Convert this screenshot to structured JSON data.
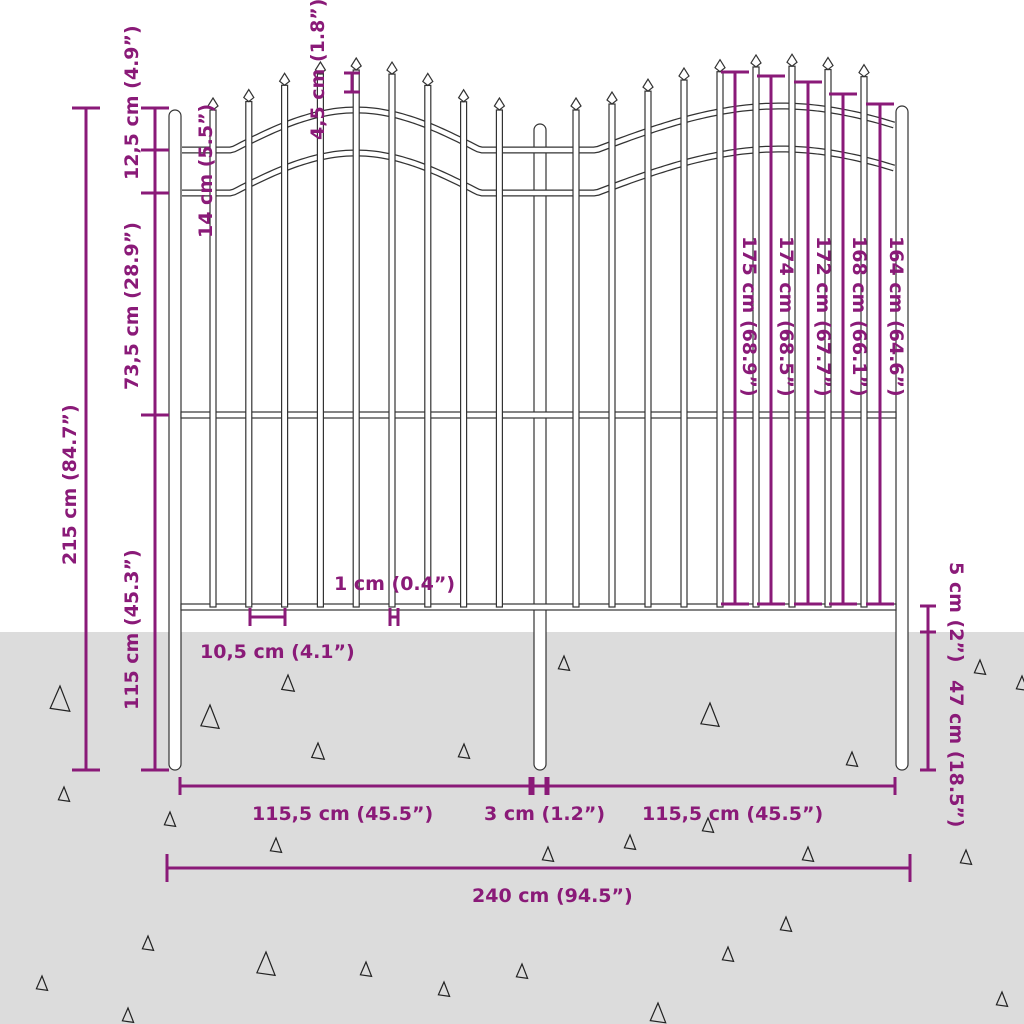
{
  "colors": {
    "accent": "#8a1a78",
    "ground": "#dcdcdc",
    "fence_stroke": "#333333"
  },
  "labels": {
    "top_rail_gap": "12,5 cm (4.9”)",
    "finial_offset": "4,5 cm (1.8”)",
    "rail_gap": "14 cm (5.5”)",
    "upper_section": "73,5 cm (28.9”)",
    "total_height": "215 cm (84.7”)",
    "lower_section": "115 cm (45.3”)",
    "picket_width": "1 cm (0.4”)",
    "picket_spacing": "10,5 cm (4.1”)",
    "h175": "175 cm (68.9”)",
    "h174": "174 cm (68.5”)",
    "h172": "172 cm (67.7”)",
    "h168": "168 cm (66.1”)",
    "h164": "164 cm (64.6”)",
    "ground_gap": "5 cm (2”)",
    "post_depth": "47 cm (18.5”)",
    "panel_left": "115,5 cm (45.5”)",
    "post_width": "3 cm (1.2”)",
    "panel_right": "115,5 cm (45.5”)",
    "total_width": "240 cm (94.5”)"
  }
}
